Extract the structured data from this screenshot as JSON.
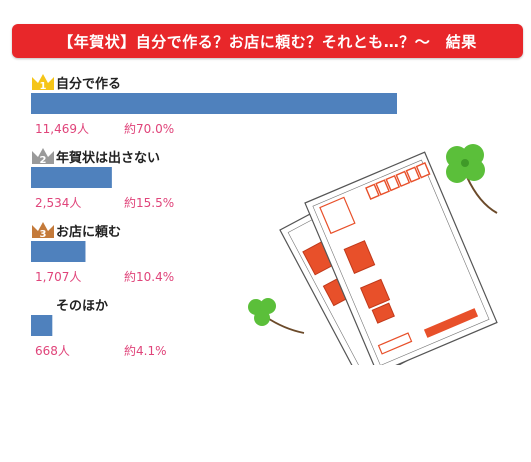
{
  "title": "【年賀状】自分で作る？お店に頼む？それとも…？〜　結果",
  "colors": {
    "banner": "#e8272a",
    "bar": "#4f81bd",
    "value_text": "#e0447a",
    "gold": "#f5c518",
    "silver": "#9a9a9a",
    "bronze": "#c47a3a",
    "stamp": "#e8502a"
  },
  "chart_data": {
    "type": "bar",
    "orientation": "horizontal",
    "categories": [
      "自分で作る",
      "年賀状は出さない",
      "お店に頼む",
      "そのほか"
    ],
    "values": [
      11469,
      2534,
      1707,
      668
    ],
    "value_labels": [
      "11,469人",
      "2,534人",
      "1,707人",
      "668人"
    ],
    "percent_labels": [
      "約70.0%",
      "約15.5%",
      "約10.4%",
      "約4.1%"
    ],
    "rank_badges": [
      "1",
      "2",
      "3",
      ""
    ],
    "title": "【年賀状】自分で作る？お店に頼む？それとも…？〜　結果",
    "xlabel": "",
    "ylabel": "",
    "grid": false,
    "legend": "none"
  }
}
